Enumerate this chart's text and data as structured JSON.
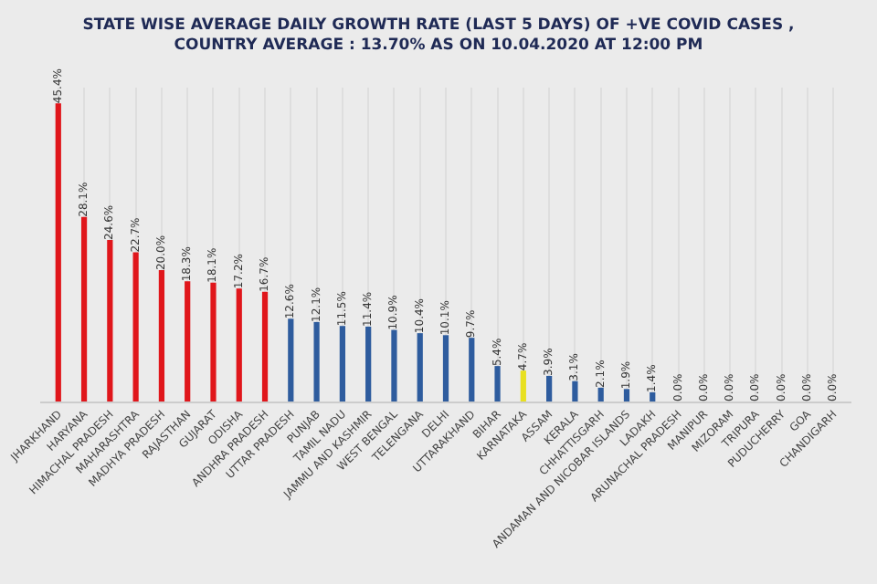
{
  "chart_data": {
    "type": "bar",
    "title": "STATE WISE AVERAGE DAILY GROWTH RATE (LAST 5 DAYS) OF +VE COVID CASES ,\nCOUNTRY AVERAGE : 13.70% AS ON 10.04.2020 AT 12:00 PM",
    "categories": [
      "JHARKHAND",
      "HARYANA",
      "HIMACHAL PRADESH",
      "MAHARASHTRA",
      "MADHYA PRADESH",
      "RAJASTHAN",
      "GUJARAT",
      "ODISHA",
      "ANDHRA PRADESH",
      "UTTAR PRADESH",
      "PUNJAB",
      "TAMIL NADU",
      "JAMMU AND KASHMIR",
      "WEST BENGAL",
      "TELENGANA",
      "DELHI",
      "UTTARAKHAND",
      "BIHAR",
      "KARNATAKA",
      "ASSAM",
      "KERALA",
      "CHHATTISGARH",
      "ANDAMAN AND NICOBAR ISLANDS",
      "LADAKH",
      "ARUNACHAL PRADESH",
      "MANIPUR",
      "MIZORAM",
      "TRIPURA",
      "PUDUCHERRY",
      "GOA",
      "CHANDIGARH"
    ],
    "values": [
      45.4,
      28.1,
      24.6,
      22.7,
      20.0,
      18.3,
      18.1,
      17.2,
      16.7,
      12.6,
      12.1,
      11.5,
      11.4,
      10.9,
      10.4,
      10.1,
      9.7,
      5.4,
      4.7,
      3.9,
      3.1,
      2.1,
      1.9,
      1.4,
      0,
      0,
      0,
      0,
      0,
      0,
      0
    ],
    "value_labels": [
      "45.4%",
      "28.1%",
      "24.6%",
      "22.7%",
      "20.0%",
      "18.3%",
      "18.1%",
      "17.2%",
      "16.7%",
      "12.6%",
      "12.1%",
      "11.5%",
      "11.4%",
      "10.9%",
      "10.4%",
      "10.1%",
      "9.7%",
      "5.4%",
      "4.7%",
      "3.9%",
      "3.1%",
      "2.1%",
      "1.9%",
      "1.4%",
      "0.0%",
      "0.0%",
      "0.0%",
      "0.0%",
      "0.0%",
      "0.0%",
      "0.0%"
    ],
    "colors": [
      "#e0161b",
      "#e0161b",
      "#e0161b",
      "#e0161b",
      "#e0161b",
      "#e0161b",
      "#e0161b",
      "#e0161b",
      "#e0161b",
      "#2e5c9e",
      "#2e5c9e",
      "#2e5c9e",
      "#2e5c9e",
      "#2e5c9e",
      "#2e5c9e",
      "#2e5c9e",
      "#2e5c9e",
      "#2e5c9e",
      "#e8e020",
      "#2e5c9e",
      "#2e5c9e",
      "#2e5c9e",
      "#2e5c9e",
      "#2e5c9e",
      "#2e5c9e",
      "#2e5c9e",
      "#2e5c9e",
      "#2e5c9e",
      "#2e5c9e",
      "#2e5c9e",
      "#2e5c9e"
    ],
    "grid": "x"
  }
}
